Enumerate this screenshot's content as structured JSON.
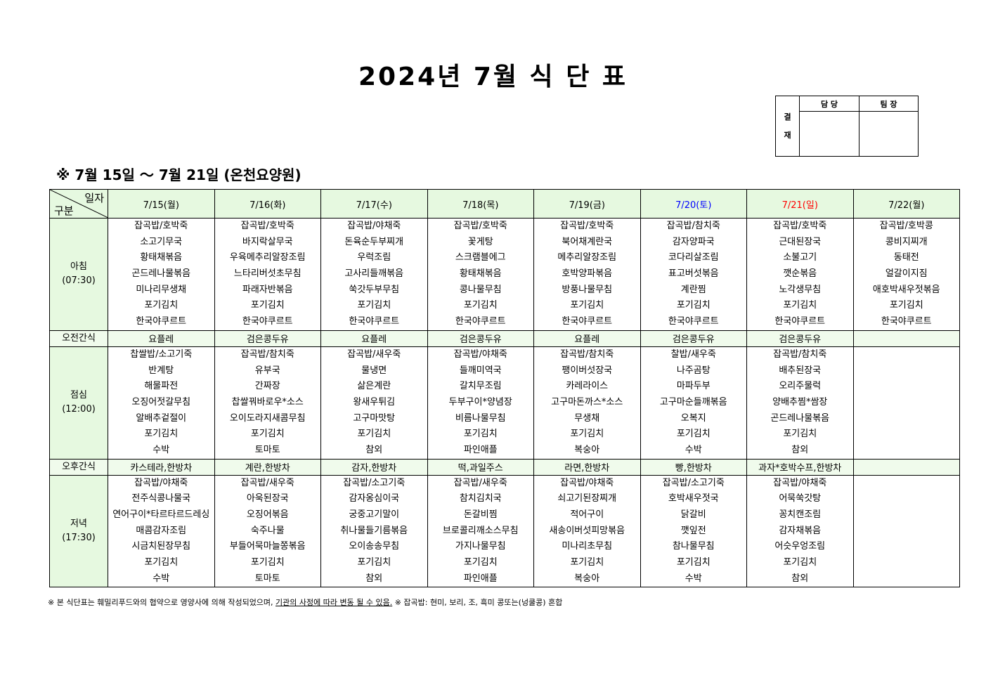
{
  "title": "2024년 7월 식 단 표",
  "approval": {
    "side_label_1": "결",
    "side_label_2": "재",
    "columns": [
      "담 당",
      "팀 장"
    ]
  },
  "subtitle": "※ 7월 15일 ～ 7월 21일 (온천요양원)",
  "table": {
    "corner_top": "일자",
    "corner_bottom": "구분",
    "days": [
      {
        "label": "7/15(월)",
        "color": "#000000"
      },
      {
        "label": "7/16(화)",
        "color": "#000000"
      },
      {
        "label": "7/17(수)",
        "color": "#000000"
      },
      {
        "label": "7/18(목)",
        "color": "#000000"
      },
      {
        "label": "7/19(금)",
        "color": "#000000"
      },
      {
        "label": "7/20(토)",
        "color": "#0000ff"
      },
      {
        "label": "7/21(일)",
        "color": "#ff0000"
      },
      {
        "label": "7/22(월)",
        "color": "#000000"
      }
    ],
    "sections": [
      {
        "label": "아침",
        "time": "(07:30)",
        "type": "meal",
        "cells": [
          [
            "잡곡밥/호박죽",
            "소고기무국",
            "황태채볶음",
            "곤드레나물볶음",
            "미나리무생채",
            "포기김치",
            "한국야쿠르트"
          ],
          [
            "잡곡밥/호박죽",
            "바지락살무국",
            "우육메추리알장조림",
            "느타리버섯초무침",
            "파래자반볶음",
            "포기김치",
            "한국야쿠르트"
          ],
          [
            "잡곡밥/야채죽",
            "돈육순두부찌개",
            "우럭조림",
            "고사리들깨볶음",
            "쑥갓두부무침",
            "포기김치",
            "한국야쿠르트"
          ],
          [
            "잡곡밥/호박죽",
            "꽃게탕",
            "스크램블에그",
            "황태채볶음",
            "콩나물무침",
            "포기김치",
            "한국야쿠르트"
          ],
          [
            "잡곡밥/호박죽",
            "북어채계란국",
            "메추리알장조림",
            "호박양파볶음",
            "방풍나물무침",
            "포기김치",
            "한국야쿠르트"
          ],
          [
            "잡곡밥/참치죽",
            "감자양파국",
            "코다리살조림",
            "표고버섯볶음",
            "계란찜",
            "포기김치",
            "한국야쿠르트"
          ],
          [
            "잡곡밥/호박죽",
            "근대된장국",
            "소불고기",
            "깻순볶음",
            "노각생무침",
            "포기김치",
            "한국야쿠르트"
          ],
          [
            "잡곡밥/호박콩",
            "콩비지찌개",
            "동태전",
            "얼갈이지짐",
            "애호박새우젓볶음",
            "포기김치",
            "한국야쿠르트"
          ]
        ]
      },
      {
        "label": "오전간식",
        "type": "snack",
        "cells": [
          "요플레",
          "검은콩두유",
          "요플레",
          "검은콩두유",
          "요플레",
          "검은콩두유",
          "검은콩두유",
          ""
        ]
      },
      {
        "label": "점심",
        "time": "(12:00)",
        "type": "meal",
        "cells": [
          [
            "찹쌀밥/소고기죽",
            "반계탕",
            "해물파전",
            "오징어젓갈무침",
            "알배추겉절이",
            "포기김치",
            "수박"
          ],
          [
            "잡곡밥/참치죽",
            "유부국",
            "간짜장",
            "찹쌀꿔바로우*소스",
            "오이도라지새콤무침",
            "포기김치",
            "토마토"
          ],
          [
            "잡곡밥/새우죽",
            "물냉면",
            "삶은계란",
            "왕새우튀김",
            "고구마맛탕",
            "포기김치",
            "참외"
          ],
          [
            "잡곡밥/야채죽",
            "들깨미역국",
            "갈치무조림",
            "두부구이*양념장",
            "비름나물무침",
            "포기김치",
            "파인애플"
          ],
          [
            "잡곡밥/참치죽",
            "팽이버섯장국",
            "카레라이스",
            "고구마돈까스*소스",
            "무생채",
            "포기김치",
            "복숭아"
          ],
          [
            "찰밥/새우죽",
            "나주곰탕",
            "마파두부",
            "고구마순들깨볶음",
            "오복지",
            "포기김치",
            "수박"
          ],
          [
            "잡곡밥/참치죽",
            "배추된장국",
            "오리주물럭",
            "양배추찜*쌈장",
            "곤드레나물볶음",
            "포기김치",
            "참외"
          ],
          []
        ]
      },
      {
        "label": "오후간식",
        "type": "snack",
        "cells": [
          "카스테라,한방차",
          "계란,한방차",
          "감자,한방차",
          "떡,과일주스",
          "라면,한방차",
          "빵,한방차",
          "과자*호박수프,한방차",
          ""
        ]
      },
      {
        "label": "저녁",
        "time": "(17:30)",
        "type": "meal",
        "cells": [
          [
            "잡곡밥/야채죽",
            "전주식콩나물국",
            "연어구이*타르타르드레싱",
            "매콤감자조림",
            "시금치된장무침",
            "포기김치",
            "수박"
          ],
          [
            "잡곡밥/새우죽",
            "아욱된장국",
            "오징어볶음",
            "숙주나물",
            "부들어묵마늘쫑볶음",
            "포기김치",
            "토마토"
          ],
          [
            "잡곡밥/소고기죽",
            "감자옹심이국",
            "궁중고기말이",
            "취나물들기름볶음",
            "오이송송무침",
            "포기김치",
            "참외"
          ],
          [
            "잡곡밥/새우죽",
            "참치김치국",
            "돈갈비찜",
            "브로콜리깨소스무침",
            "가지나물무침",
            "포기김치",
            "파인애플"
          ],
          [
            "잡곡밥/야채죽",
            "쇠고기된장찌개",
            "적어구이",
            "새송이버섯피망볶음",
            "미나리초무침",
            "포기김치",
            "복숭아"
          ],
          [
            "잡곡밥/소고기죽",
            "호박새우젓국",
            "닭갈비",
            "깻잎전",
            "참나물무침",
            "포기김치",
            "수박"
          ],
          [
            "잡곡밥/야채죽",
            "어묵쑥갓탕",
            "꽁치캔조림",
            "감자채볶음",
            "어슷우엉조림",
            "포기김치",
            "참외"
          ],
          []
        ]
      }
    ]
  },
  "footer": {
    "part1": "※ 본 식단표는 훼밀리푸드와의 협약으로 영양사에 의해 작성되었으며, ",
    "underlined": "기관의 사정에 따라 변동 될 수 있음.",
    "part2": " ※ 잡곡밥: 현미, 보리, 조, 흑미 콩또는(넝쿨콩) 혼합"
  }
}
